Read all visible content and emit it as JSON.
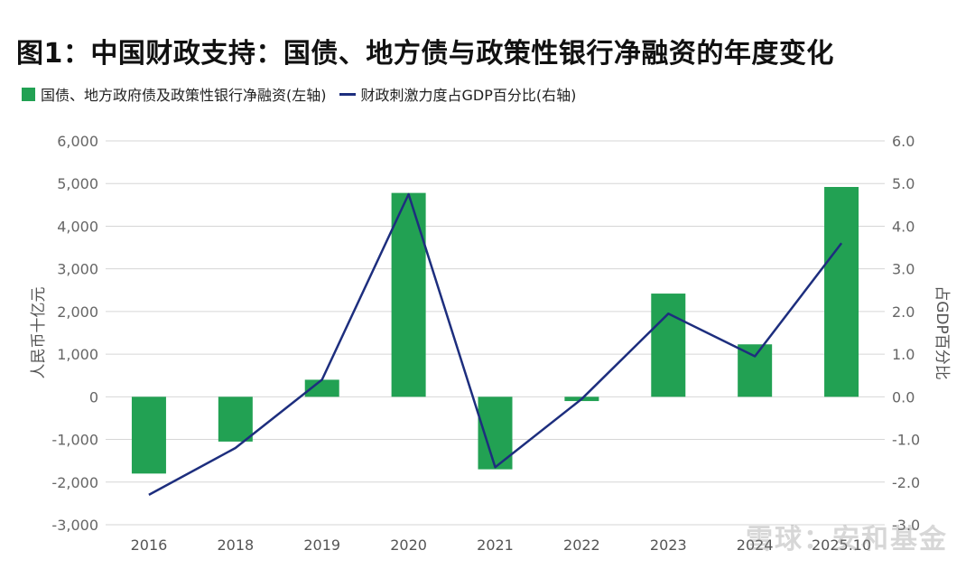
{
  "chart_data": {
    "type": "bar",
    "title": "图1：中国财政支持：国债、地方债与政策性银行净融资的年度变化",
    "categories": [
      "2016",
      "2018",
      "2019",
      "2020",
      "2021",
      "2022",
      "2023",
      "2024",
      "2025.10"
    ],
    "series": [
      {
        "name": "国债、地方政府债及政策性银行净融资(左轴)",
        "type": "bar",
        "axis": "left",
        "color": "#22a153",
        "values": [
          -1800,
          -1050,
          400,
          4780,
          -1700,
          -100,
          2420,
          1230,
          4920
        ]
      },
      {
        "name": "财政刺激力度占GDP百分比(右轴)",
        "type": "line",
        "axis": "right",
        "color": "#1d2e7e",
        "values": [
          -2.3,
          -1.2,
          0.4,
          4.75,
          -1.65,
          -0.05,
          1.95,
          0.95,
          3.6
        ]
      }
    ],
    "ylabel": "人民币十亿元",
    "y2label": "占GDP百分比",
    "ylim": [
      -3000,
      6000
    ],
    "y2lim": [
      -3.0,
      6.0
    ],
    "yticks": [
      "6,000",
      "5,000",
      "4,000",
      "3,000",
      "2,000",
      "1,000",
      "0",
      "-1,000",
      "-2,000",
      "-3,000"
    ],
    "y2ticks": [
      "6.0",
      "5.0",
      "4.0",
      "3.0",
      "2.0",
      "1.0",
      "0.0",
      "-1.0",
      "-2.0",
      "-3.0"
    ],
    "grid": true,
    "legend": "top-left"
  },
  "watermark": "雪球：安和基金"
}
